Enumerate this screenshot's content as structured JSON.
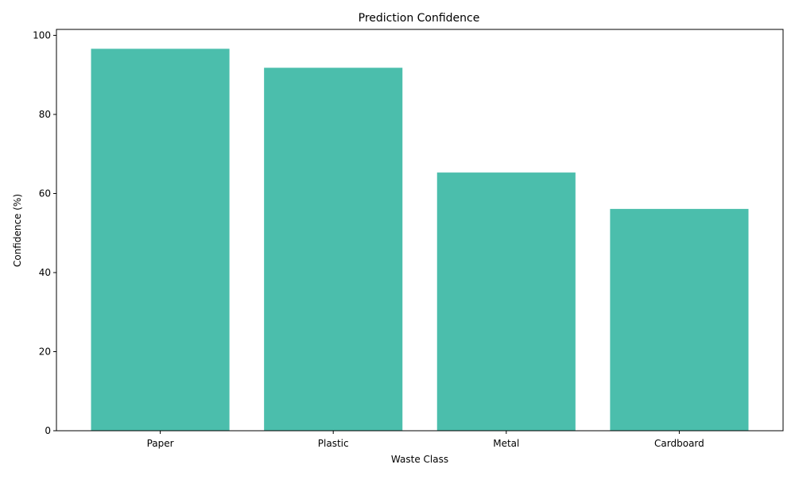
{
  "chart_data": {
    "type": "bar",
    "title": "Prediction Confidence",
    "xlabel": "Waste Class",
    "ylabel": "Confidence (%)",
    "categories": [
      "Paper",
      "Plastic",
      "Metal",
      "Cardboard"
    ],
    "values": [
      96.6,
      91.8,
      65.3,
      56.1
    ],
    "ylim": [
      0,
      101.5
    ],
    "yticks": [
      0,
      20,
      40,
      60,
      80,
      100
    ],
    "bar_color": "#4bbeac",
    "grid": false,
    "legend": "none"
  }
}
